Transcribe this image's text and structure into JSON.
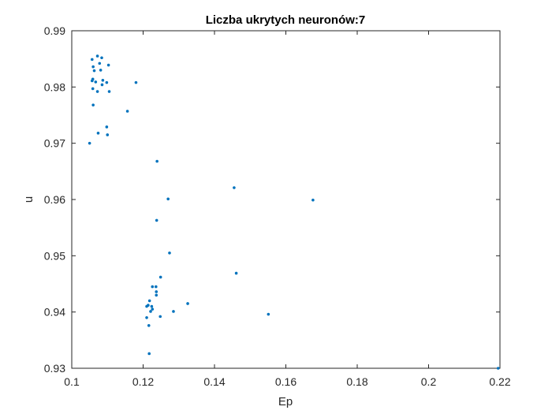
{
  "chart_data": {
    "type": "scatter",
    "title": "Liczba ukrytych neuronów:7",
    "xlabel": "Ep",
    "ylabel": "u",
    "xlim": [
      0.1,
      0.22
    ],
    "ylim": [
      0.93,
      0.99
    ],
    "xticks": [
      "0.1",
      "0.12",
      "0.14",
      "0.16",
      "0.18",
      "0.2",
      "0.22"
    ],
    "yticks": [
      "0.93",
      "0.94",
      "0.95",
      "0.96",
      "0.97",
      "0.98",
      "0.99"
    ],
    "grid": false,
    "marker_color": "#0072BD",
    "points": [
      [
        0.1057,
        0.9849
      ],
      [
        0.1072,
        0.9855
      ],
      [
        0.1084,
        0.9852
      ],
      [
        0.1078,
        0.9842
      ],
      [
        0.106,
        0.9836
      ],
      [
        0.1103,
        0.9839
      ],
      [
        0.1081,
        0.983
      ],
      [
        0.1063,
        0.9829
      ],
      [
        0.1059,
        0.9814
      ],
      [
        0.1057,
        0.9811
      ],
      [
        0.1087,
        0.9812
      ],
      [
        0.1098,
        0.9808
      ],
      [
        0.1085,
        0.9804
      ],
      [
        0.1067,
        0.9809
      ],
      [
        0.118,
        0.9808
      ],
      [
        0.1059,
        0.9797
      ],
      [
        0.1072,
        0.9792
      ],
      [
        0.1105,
        0.9792
      ],
      [
        0.106,
        0.9768
      ],
      [
        0.1156,
        0.9757
      ],
      [
        0.1098,
        0.9729
      ],
      [
        0.1074,
        0.9718
      ],
      [
        0.11,
        0.9715
      ],
      [
        0.105,
        0.97
      ],
      [
        0.1239,
        0.9668
      ],
      [
        0.1455,
        0.9621
      ],
      [
        0.127,
        0.9601
      ],
      [
        0.1676,
        0.9599
      ],
      [
        0.1238,
        0.9563
      ],
      [
        0.1274,
        0.9505
      ],
      [
        0.1461,
        0.9469
      ],
      [
        0.1249,
        0.9462
      ],
      [
        0.1226,
        0.9445
      ],
      [
        0.1236,
        0.9445
      ],
      [
        0.1237,
        0.9436
      ],
      [
        0.1237,
        0.943
      ],
      [
        0.1218,
        0.942
      ],
      [
        0.1214,
        0.9412
      ],
      [
        0.121,
        0.941
      ],
      [
        0.1224,
        0.941
      ],
      [
        0.1226,
        0.9405
      ],
      [
        0.1325,
        0.9415
      ],
      [
        0.1221,
        0.9401
      ],
      [
        0.1285,
        0.9401
      ],
      [
        0.1551,
        0.9396
      ],
      [
        0.1248,
        0.9392
      ],
      [
        0.121,
        0.939
      ],
      [
        0.1216,
        0.9376
      ],
      [
        0.1217,
        0.9326
      ],
      [
        0.2195,
        0.93
      ]
    ]
  }
}
